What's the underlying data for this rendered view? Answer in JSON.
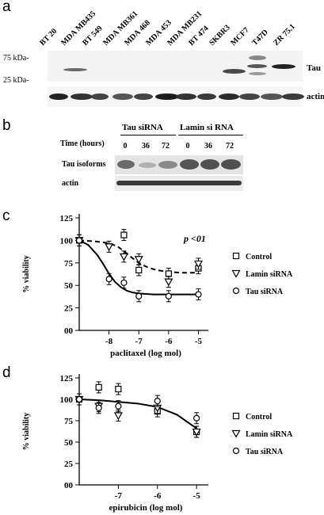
{
  "panel_a": {
    "letter": "a",
    "cell_lines": [
      "BT 20",
      "MDA MB435",
      "BT 549",
      "MDA MB361",
      "MDA 468",
      "MDA 453",
      "MDA MB231",
      "BT 474",
      "SKBR3",
      "MCF7",
      "T47D",
      "ZR 75.1"
    ],
    "marker_75": "75 kDa-",
    "marker_25": "25 kDa-",
    "label_tau": "Tau",
    "label_actin": "actin"
  },
  "panel_b": {
    "letter": "b",
    "group1": "Tau siRNA",
    "group2": "Lamin si RNA",
    "time_label": "Time (hours)",
    "times": [
      "0",
      "36",
      "72",
      "0",
      "36",
      "72"
    ],
    "row1": "Tau isoforms",
    "row2": "actin"
  },
  "panel_c": {
    "letter": "c",
    "annotation": "p <01",
    "legend": [
      "Control",
      "Lamin siRNA",
      "Tau siRNA"
    ]
  },
  "panel_d": {
    "letter": "d",
    "legend": [
      "Control",
      "Lamin siRNA",
      "Tau siRNA"
    ]
  },
  "chart_data": [
    {
      "type": "scatter",
      "xlabel": "paclitaxel (log mol)",
      "ylabel": "% viability",
      "xlim": [
        -9,
        -4.8
      ],
      "ylim": [
        0,
        125
      ],
      "xticks": [
        "-8",
        "-7",
        "-6",
        "-5"
      ],
      "yticks": [
        "00",
        "25",
        "50",
        "75",
        "100",
        "125"
      ],
      "series": [
        {
          "name": "Control",
          "marker": "square",
          "x": [
            -9,
            -7.5,
            -7,
            -6,
            -5
          ],
          "y": [
            100,
            106,
            67,
            63,
            69
          ]
        },
        {
          "name": "Lamin siRNA",
          "marker": "triangle-down",
          "x": [
            -9,
            -8,
            -7.5,
            -7,
            -6,
            -5
          ],
          "y": [
            100,
            93,
            82,
            79,
            54,
            74
          ]
        },
        {
          "name": "Tau siRNA",
          "marker": "circle",
          "x": [
            -9,
            -8,
            -7.5,
            -7,
            -6,
            -5
          ],
          "y": [
            100,
            57,
            53,
            38,
            38,
            40
          ]
        }
      ],
      "fits": [
        {
          "style": "dashed",
          "x": [
            -9,
            -8.5,
            -8,
            -7.7,
            -7.5,
            -7.2,
            -7,
            -6.7,
            -6.4,
            -6,
            -5.5,
            -5
          ],
          "y": [
            100,
            99,
            97,
            93,
            88,
            80,
            75,
            70,
            67,
            65,
            64,
            64
          ]
        },
        {
          "style": "solid",
          "x": [
            -9,
            -8.7,
            -8.4,
            -8.2,
            -8,
            -7.8,
            -7.6,
            -7.4,
            -7.2,
            -7,
            -6.5,
            -6,
            -5
          ],
          "y": [
            100,
            95,
            84,
            74,
            63,
            54,
            48,
            44,
            42,
            41,
            40,
            40,
            40
          ]
        }
      ],
      "legend_position": "right"
    },
    {
      "type": "scatter",
      "xlabel": "epirubicin (log mol)",
      "ylabel": "% viability",
      "xlim": [
        -8,
        -4.8
      ],
      "ylim": [
        0,
        125
      ],
      "xticks": [
        "-7",
        "-6",
        "-5"
      ],
      "yticks": [
        "00",
        "25",
        "50",
        "75",
        "100",
        "125"
      ],
      "series": [
        {
          "name": "Control",
          "marker": "square",
          "x": [
            -8,
            -7.5,
            -7,
            -6,
            -5
          ],
          "y": [
            100,
            114,
            112,
            86,
            62
          ]
        },
        {
          "name": "Lamin siRNA",
          "marker": "triangle-down",
          "x": [
            -8,
            -7.5,
            -7,
            -6,
            -5
          ],
          "y": [
            100,
            92,
            81,
            90,
            62
          ]
        },
        {
          "name": "Tau siRNA",
          "marker": "circle",
          "x": [
            -8,
            -7.5,
            -7,
            -6,
            -5
          ],
          "y": [
            100,
            90,
            92,
            98,
            78
          ]
        }
      ],
      "fits": [
        {
          "style": "solid",
          "x": [
            -8,
            -7.5,
            -7,
            -6.5,
            -6,
            -5.5,
            -5
          ],
          "y": [
            100,
            99,
            97,
            95,
            91,
            82,
            66
          ]
        }
      ],
      "legend_position": "right"
    }
  ]
}
